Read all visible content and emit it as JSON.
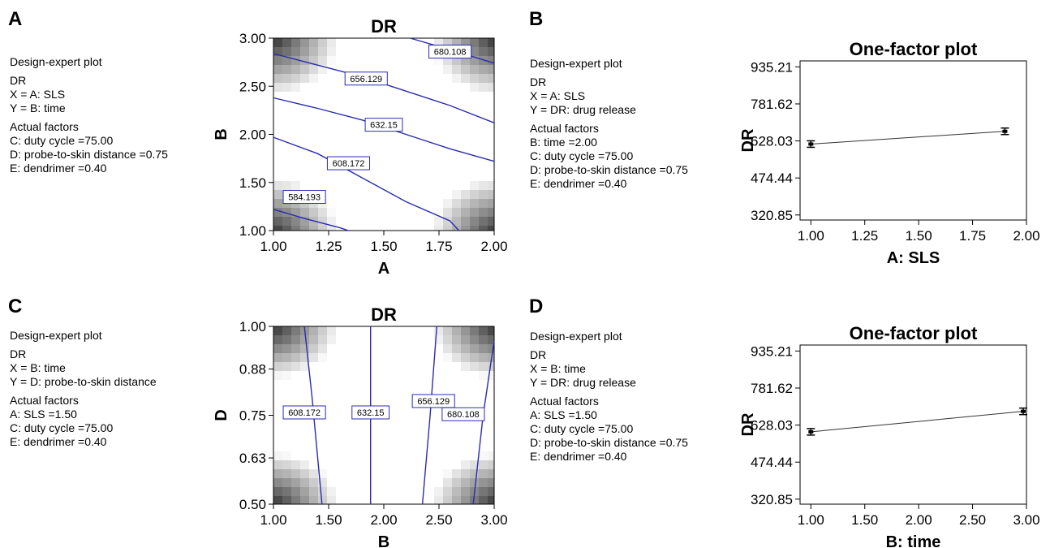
{
  "panels": [
    {
      "letter": "A",
      "info": [
        "Design-expert plot",
        "DR",
        "X = A: SLS",
        "Y = B: time",
        "Actual factors",
        "C: duty cycle =75.00",
        "D: probe-to-skin distance =0.75",
        "E: dendrimer =0.40"
      ]
    },
    {
      "letter": "B",
      "info": [
        "Design-expert plot",
        "DR",
        "X = A: SLS",
        "Y = DR: drug release",
        "Actual factors",
        "B: time =2.00",
        "C: duty cycle =75.00",
        "D: probe-to-skin distance =0.75",
        "E: dendrimer =0.40"
      ]
    },
    {
      "letter": "C",
      "info": [
        "Design-expert plot",
        "DR",
        "X = B: time",
        "Y = D: probe-to-skin distance",
        "Actual factors",
        "A: SLS =1.50",
        "C: duty cycle =75.00",
        "E: dendrimer =0.40"
      ]
    },
    {
      "letter": "D",
      "info": [
        "Design-expert plot",
        "DR",
        "X = B: time",
        "Y = DR: drug release",
        "Actual factors",
        "A: SLS =1.50",
        "C: duty cycle =75.00",
        "D: probe-to-skin distance =0.75",
        "E: dendrimer =0.40"
      ]
    }
  ],
  "chart_data": [
    {
      "type": "contour",
      "title": "DR",
      "xlabel": "A",
      "ylabel": "B",
      "xlim": [
        1.0,
        2.0
      ],
      "ylim": [
        1.0,
        3.0
      ],
      "xticks": [
        "1.00",
        "1.25",
        "1.50",
        "1.75",
        "2.00"
      ],
      "yticks": [
        "1.00",
        "1.50",
        "2.00",
        "2.50",
        "3.00"
      ],
      "line_color": "#2b2bb3",
      "contours": [
        {
          "label": "584.193",
          "label_at": [
            1.14,
            1.35
          ],
          "points": [
            [
              1.0,
              1.22
            ],
            [
              1.15,
              1.12
            ],
            [
              1.3,
              1.03
            ],
            [
              1.34,
              1.0
            ]
          ]
        },
        {
          "label": "608.172",
          "label_at": [
            1.34,
            1.7
          ],
          "points": [
            [
              1.0,
              1.97
            ],
            [
              1.2,
              1.8
            ],
            [
              1.4,
              1.55
            ],
            [
              1.6,
              1.3
            ],
            [
              1.8,
              1.1
            ],
            [
              1.84,
              1.0
            ]
          ]
        },
        {
          "label": "632.15",
          "label_at": [
            1.5,
            2.1
          ],
          "points": [
            [
              1.0,
              2.38
            ],
            [
              1.2,
              2.27
            ],
            [
              1.4,
              2.15
            ],
            [
              1.6,
              2.0
            ],
            [
              1.8,
              1.85
            ],
            [
              2.0,
              1.72
            ]
          ]
        },
        {
          "label": "656.129",
          "label_at": [
            1.42,
            2.58
          ],
          "points": [
            [
              1.0,
              2.84
            ],
            [
              1.2,
              2.72
            ],
            [
              1.4,
              2.6
            ],
            [
              1.6,
              2.45
            ],
            [
              1.8,
              2.3
            ],
            [
              2.0,
              2.12
            ]
          ]
        },
        {
          "label": "680.108",
          "label_at": [
            1.8,
            2.86
          ],
          "points": [
            [
              1.62,
              3.0
            ],
            [
              1.8,
              2.88
            ],
            [
              2.0,
              2.74
            ]
          ]
        }
      ]
    },
    {
      "type": "line",
      "title": "One-factor plot",
      "xlabel": "A: SLS",
      "ylabel": "DR",
      "xlim": [
        0.95,
        2.0
      ],
      "ylim": [
        300,
        960
      ],
      "xticks": [
        "1.00",
        "1.25",
        "1.50",
        "1.75",
        "2.00"
      ],
      "yticks": [
        "320.85",
        "474.44",
        "628.03",
        "781.62",
        "935.21"
      ],
      "x": [
        1.0,
        1.9
      ],
      "y": [
        615,
        668
      ]
    },
    {
      "type": "contour",
      "title": "DR",
      "xlabel": "B",
      "ylabel": "D",
      "xlim": [
        1.0,
        3.0
      ],
      "ylim": [
        0.5,
        1.0
      ],
      "xticks": [
        "1.00",
        "1.50",
        "2.00",
        "2.50",
        "3.00"
      ],
      "yticks": [
        "0.50",
        "0.63",
        "0.75",
        "0.88",
        "1.00"
      ],
      "line_color": "#2b2bb3",
      "contours": [
        {
          "label": "608.172",
          "label_at": [
            1.28,
            0.758
          ],
          "points": [
            [
              1.28,
              1.0
            ],
            [
              1.35,
              0.8
            ],
            [
              1.44,
              0.5
            ]
          ]
        },
        {
          "label": "632.15",
          "label_at": [
            1.88,
            0.758
          ],
          "points": [
            [
              1.88,
              1.0
            ],
            [
              1.88,
              0.5
            ]
          ]
        },
        {
          "label": "656.129",
          "label_at": [
            2.45,
            0.79
          ],
          "points": [
            [
              2.48,
              1.0
            ],
            [
              2.42,
              0.75
            ],
            [
              2.35,
              0.5
            ]
          ]
        },
        {
          "label": "680.108",
          "label_at": [
            2.72,
            0.753
          ],
          "points": [
            [
              3.0,
              0.96
            ],
            [
              2.9,
              0.75
            ],
            [
              2.81,
              0.5
            ]
          ]
        }
      ]
    },
    {
      "type": "line",
      "title": "One-factor plot",
      "xlabel": "B: time",
      "ylabel": "DR",
      "xlim": [
        0.9,
        3.0
      ],
      "ylim": [
        300,
        960
      ],
      "xticks": [
        "1.00",
        "1.50",
        "2.00",
        "2.50",
        "3.00"
      ],
      "yticks": [
        "320.85",
        "474.44",
        "628.03",
        "781.62",
        "935.21"
      ],
      "x": [
        1.0,
        2.97
      ],
      "y": [
        600,
        685
      ]
    }
  ]
}
